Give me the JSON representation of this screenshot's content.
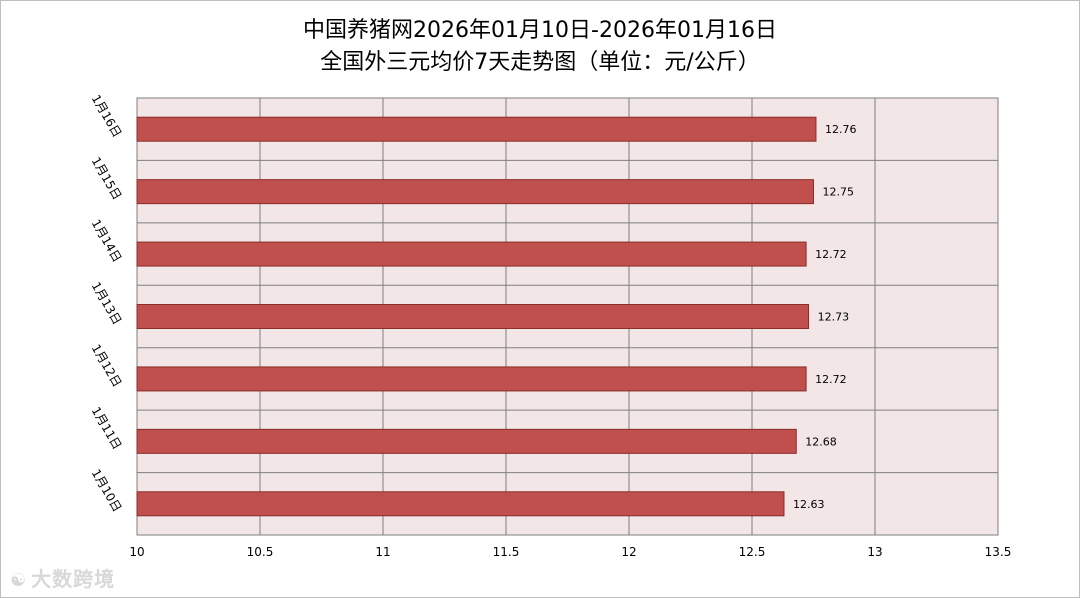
{
  "watermark": {
    "text": "大数跨境",
    "icon": "logo-icon"
  },
  "colors": {
    "bar": "#c0504d",
    "bar_stroke": "#8b2d2b",
    "plot_bg": "#f2e6e6",
    "grid": "#7f7f7f"
  },
  "chart_data": {
    "type": "bar",
    "orientation": "horizontal",
    "title": "中国养猪网2026年01月10日-2026年01月16日",
    "subtitle": "全国外三元均价7天走势图（单位：元/公斤）",
    "categories": [
      "1月16日",
      "1月15日",
      "1月14日",
      "1月13日",
      "1月12日",
      "1月11日",
      "1月10日"
    ],
    "values": [
      12.76,
      12.75,
      12.72,
      12.73,
      12.72,
      12.68,
      12.63
    ],
    "data_labels": [
      "12.76",
      "12.75",
      "12.72",
      "12.73",
      "12.72",
      "12.68",
      "12.63"
    ],
    "xlim": [
      10,
      13.5
    ],
    "xticks": [
      10,
      10.5,
      11,
      11.5,
      12,
      12.5,
      13,
      13.5
    ],
    "xtick_labels": [
      "10",
      "10.5",
      "11",
      "11.5",
      "12",
      "12.5",
      "13",
      "13.5"
    ],
    "grid": true,
    "legend": "none"
  }
}
